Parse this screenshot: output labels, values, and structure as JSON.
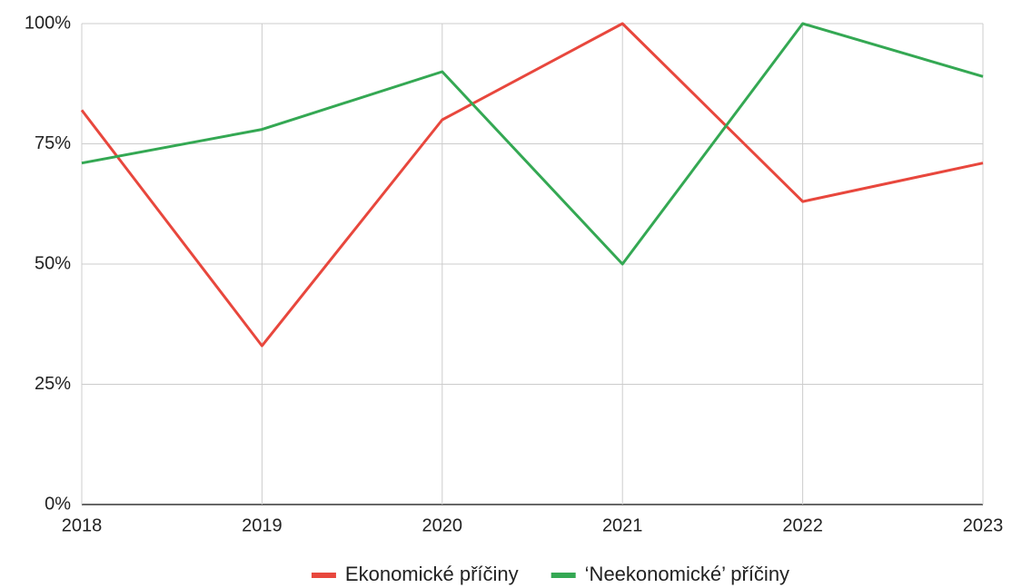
{
  "chart_data": {
    "type": "line",
    "categories": [
      "2018",
      "2019",
      "2020",
      "2021",
      "2022",
      "2023"
    ],
    "series": [
      {
        "name": "Ekonomické příčiny",
        "color": "#e8473d",
        "values": [
          82,
          33,
          80,
          100,
          63,
          71
        ]
      },
      {
        "name": "‘Neekonomické’ příčiny",
        "color": "#34a853",
        "values": [
          71,
          78,
          90,
          50,
          100,
          89
        ]
      }
    ],
    "ylim": [
      0,
      100
    ],
    "yticks": [
      {
        "value": 0,
        "label": "0%"
      },
      {
        "value": 25,
        "label": "25%"
      },
      {
        "value": 50,
        "label": "50%"
      },
      {
        "value": 75,
        "label": "75%"
      },
      {
        "value": 100,
        "label": "100%"
      }
    ],
    "grid": true,
    "legend": "bottom"
  }
}
